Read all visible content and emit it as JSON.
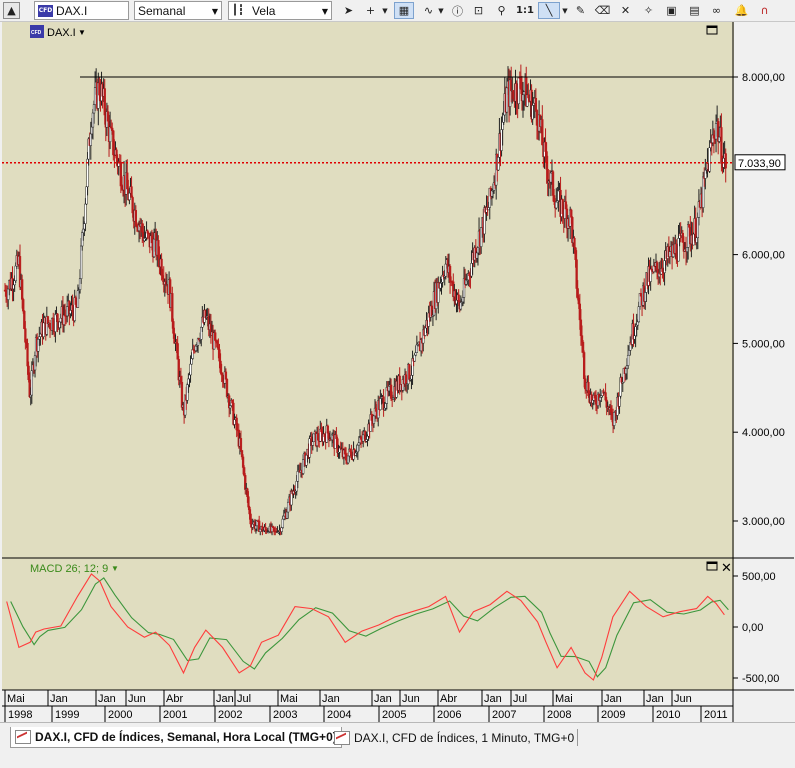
{
  "toolbar": {
    "symbol": "DAX.I",
    "period": "Semanal",
    "chart_style": "Vela",
    "ratio_label": "1:1"
  },
  "chart": {
    "symbol_tag": "DAX.I",
    "resistance_label": "8.000,00",
    "current_price_label": "7.033,90",
    "y_ticks": [
      "8.000,00",
      "7.033,90",
      "6.000,00",
      "5.000,00",
      "4.000,00",
      "3.000,00"
    ],
    "colors": {
      "background": "#e0ddc0",
      "down_candle": "#b81c1c",
      "up_candle": "#222222",
      "price_line": "#e00000",
      "macd": "#ff3c3c",
      "signal": "#3c963c"
    }
  },
  "macd": {
    "label": "MACD 26; 12; 9",
    "y_ticks": [
      "500,00",
      "0,00",
      "-500,00"
    ]
  },
  "x_axis": {
    "months": [
      "Mai",
      "Jan",
      "Jan",
      "Jun",
      "Abr",
      "Jan",
      "Jul",
      "Mai",
      "Jan",
      "Jan",
      "Jun",
      "Abr",
      "Jan",
      "Jul",
      "Mai",
      "Jan",
      "Jan",
      "Jun"
    ],
    "years": [
      "1998",
      "1999",
      "2000",
      "2001",
      "2002",
      "2003",
      "2004",
      "2005",
      "2006",
      "2007",
      "2008",
      "2009",
      "2010",
      "2011"
    ]
  },
  "tabs": [
    {
      "label": "DAX.I, CFD de Índices, Semanal, Hora Local (TMG+0)"
    },
    {
      "label": "DAX.I, CFD de Índices, 1 Minuto, TMG+0"
    }
  ],
  "chart_data": {
    "type": "candlestick",
    "x": [
      1998.33,
      1998.55,
      1998.75,
      1998.85,
      1999.0,
      1999.3,
      1999.6,
      1999.85,
      2000.0,
      2000.2,
      2000.5,
      2000.8,
      2001.0,
      2001.25,
      2001.5,
      2001.7,
      2001.9,
      2002.2,
      2002.5,
      2002.7,
      2002.9,
      2003.2,
      2003.5,
      2003.8,
      2004.1,
      2004.4,
      2004.7,
      2005.0,
      2005.3,
      2005.6,
      2005.9,
      2006.2,
      2006.45,
      2006.7,
      2007.0,
      2007.3,
      2007.55,
      2007.85,
      2008.0,
      2008.2,
      2008.45,
      2008.7,
      2008.85,
      2009.0,
      2009.2,
      2009.5,
      2009.8,
      2010.1,
      2010.4,
      2010.7,
      2010.9,
      2011.05,
      2011.2
    ],
    "y": [
      5600,
      5900,
      4400,
      5000,
      5200,
      5300,
      5400,
      7600,
      7900,
      7300,
      6700,
      6200,
      6100,
      5600,
      4200,
      5000,
      5300,
      4700,
      3900,
      3000,
      2900,
      2850,
      3400,
      3900,
      4000,
      3700,
      3900,
      4300,
      4500,
      4700,
      5300,
      5900,
      5400,
      6000,
      6600,
      7800,
      7900,
      7600,
      7000,
      6600,
      6400,
      4600,
      4300,
      4500,
      4100,
      5000,
      5700,
      5900,
      6100,
      6300,
      7000,
      7500,
      7033.9
    ],
    "ylabel": "",
    "ylim": [
      2800,
      8150
    ],
    "resistance": 8000,
    "current_price": 7033.9,
    "macd": {
      "series": [
        {
          "name": "MACD",
          "values": [
            250,
            -200,
            -150,
            -50,
            -20,
            10,
            300,
            520,
            450,
            200,
            0,
            -100,
            -50,
            -180,
            -450,
            -200,
            -30,
            -200,
            -450,
            -380,
            -150,
            -80,
            200,
            180,
            100,
            -150,
            -40,
            20,
            100,
            150,
            200,
            300,
            -50,
            150,
            220,
            350,
            260,
            50,
            -150,
            -400,
            -200,
            -450,
            -520,
            -300,
            100,
            350,
            200,
            100,
            150,
            180,
            300,
            230,
            120
          ]
        }
      ],
      "ylim": [
        -600,
        650
      ]
    }
  }
}
